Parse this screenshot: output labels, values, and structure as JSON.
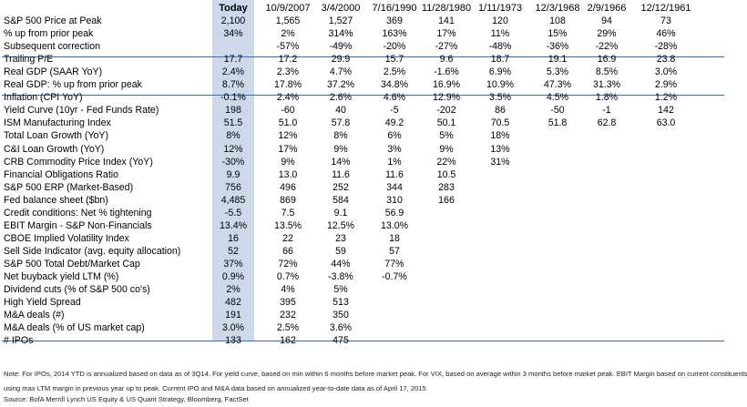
{
  "header": [
    "Today",
    "10/9/2007",
    "3/4/2000",
    "7/16/1990",
    "11/28/1980",
    "1/11/1973",
    "12/3/1968",
    "2/9/1966",
    "12/12/1961"
  ],
  "rows": [
    {
      "label": "S&P 500 Price at Peak",
      "values": [
        "2,100",
        "1,565",
        "1,527",
        "369",
        "141",
        "120",
        "108",
        "94",
        "73"
      ]
    },
    {
      "label": "% up from prior peak",
      "values": [
        "34%",
        "2%",
        "314%",
        "163%",
        "17%",
        "11%",
        "15%",
        "29%",
        "46%"
      ]
    },
    {
      "label": "Subsequent correction",
      "values": [
        "",
        "-57%",
        "-49%",
        "-20%",
        "-27%",
        "-48%",
        "-36%",
        "-22%",
        "-28%"
      ]
    },
    {
      "label": "Trailing P/E",
      "values": [
        "17.7",
        "17.2",
        "29.9",
        "15.7",
        "9.6",
        "18.7",
        "19.1",
        "16.9",
        "23.8"
      ]
    },
    {
      "label": "Real GDP (SAAR YoY)",
      "values": [
        "2.4%",
        "2.3%",
        "4.7%",
        "2.5%",
        "-1.6%",
        "6.9%",
        "5.3%",
        "8.5%",
        "3.0%"
      ]
    },
    {
      "label": "Real GDP: % up from prior peak",
      "values": [
        "8.7%",
        "17.8%",
        "37.2%",
        "34.8%",
        "16.9%",
        "10.9%",
        "47.3%",
        "31.3%",
        "2.9%"
      ]
    },
    {
      "label": "Inflation (CPI YoY)",
      "values": [
        "-0.1%",
        "2.4%",
        "2.6%",
        "4.6%",
        "12.9%",
        "3.5%",
        "4.5%",
        "1.8%",
        "1.2%"
      ]
    },
    {
      "label": "Yield Curve (10yr - Fed Funds Rate)",
      "values": [
        "198",
        "-60",
        "40",
        "-5",
        "-202",
        "86",
        "-50",
        "-1",
        "142"
      ]
    },
    {
      "label": "ISM Manufacturing Index",
      "values": [
        "51.5",
        "51.0",
        "57.8",
        "49.2",
        "50.1",
        "70.5",
        "51.8",
        "62.8",
        "63.0"
      ]
    },
    {
      "label": "Total Loan Growth (YoY)",
      "values": [
        "8%",
        "12%",
        "8%",
        "6%",
        "5%",
        "18%",
        "",
        "",
        ""
      ]
    },
    {
      "label": "C&I Loan Growth (YoY)",
      "values": [
        "12%",
        "17%",
        "9%",
        "3%",
        "9%",
        "13%",
        "",
        "",
        ""
      ]
    },
    {
      "label": "CRB Commodity Price Index (YoY)",
      "values": [
        "-30%",
        "9%",
        "14%",
        "1%",
        "22%",
        "31%",
        "",
        "",
        ""
      ]
    },
    {
      "label": "Financial Obligations Ratio",
      "values": [
        "9.9",
        "13.0",
        "11.6",
        "11.6",
        "10.5",
        "",
        "",
        "",
        ""
      ]
    },
    {
      "label": "S&P 500 ERP (Market-Based)",
      "values": [
        "756",
        "496",
        "252",
        "344",
        "283",
        "",
        "",
        "",
        ""
      ]
    },
    {
      "label": "Fed balance sheet ($bn)",
      "values": [
        "4,485",
        "869",
        "584",
        "310",
        "166",
        "",
        "",
        "",
        ""
      ]
    },
    {
      "label": "Credit conditions: Net % tightening",
      "values": [
        "-5.5",
        "7.5",
        "9.1",
        "56.9",
        "",
        "",
        "",
        "",
        ""
      ]
    },
    {
      "label": "EBIT Margin - S&P Non-Financials",
      "values": [
        "13.4%",
        "13.5%",
        "12.5%",
        "13.0%",
        "",
        "",
        "",
        "",
        ""
      ]
    },
    {
      "label": "CBOE Implied Volatility Index",
      "values": [
        "16",
        "22",
        "23",
        "18",
        "",
        "",
        "",
        "",
        ""
      ]
    },
    {
      "label": "Sell Side Indicator (avg. equity allocation)",
      "values": [
        "52",
        "66",
        "59",
        "57",
        "",
        "",
        "",
        "",
        ""
      ]
    },
    {
      "label": "S&P 500 Total Debt/Market Cap",
      "values": [
        "37%",
        "72%",
        "44%",
        "77%",
        "",
        "",
        "",
        "",
        ""
      ]
    },
    {
      "label": "Net buyback yield LTM (%)",
      "values": [
        "0.9%",
        "0.7%",
        "-3.8%",
        "-0.7%",
        "",
        "",
        "",
        "",
        ""
      ]
    },
    {
      "label": "Dividend cuts (% of S&P 500 co's)",
      "values": [
        "2%",
        "4%",
        "5%",
        "",
        "",
        "",
        "",
        "",
        ""
      ]
    },
    {
      "label": "High Yield Spread",
      "values": [
        "482",
        "395",
        "513",
        "",
        "",
        "",
        "",
        "",
        ""
      ]
    },
    {
      "label": "M&A deals (#)",
      "values": [
        "191",
        "232",
        "350",
        "",
        "",
        "",
        "",
        "",
        ""
      ]
    },
    {
      "label": "M&A deals (% of US market cap)",
      "values": [
        "3.0%",
        "2.5%",
        "3.6%",
        "",
        "",
        "",
        "",
        "",
        ""
      ]
    },
    {
      "label": "# IPOs",
      "values": [
        "133",
        "162",
        "475",
        "",
        "",
        "",
        "",
        "",
        ""
      ]
    }
  ],
  "notes": [
    "Note: For IPOs, 2014 YTD is annualized based on data as of 3Q14. For yield curve, based on min within 6 months before market peak. For VIX, based on average within 3 months before market peak. EBIT Margin based on current constituents",
    "using max LTM margin in previous year up to peak. Current IPO and M&A data based on annualized year-to-date data as of April 17, 2015",
    "Source: BofA Merrill Lynch US Equity & US Quant Strategy, Bloomberg, FactSet"
  ],
  "colors": {
    "today_column": "#cdd9e8",
    "rule_lines": "#4a6a9a"
  }
}
